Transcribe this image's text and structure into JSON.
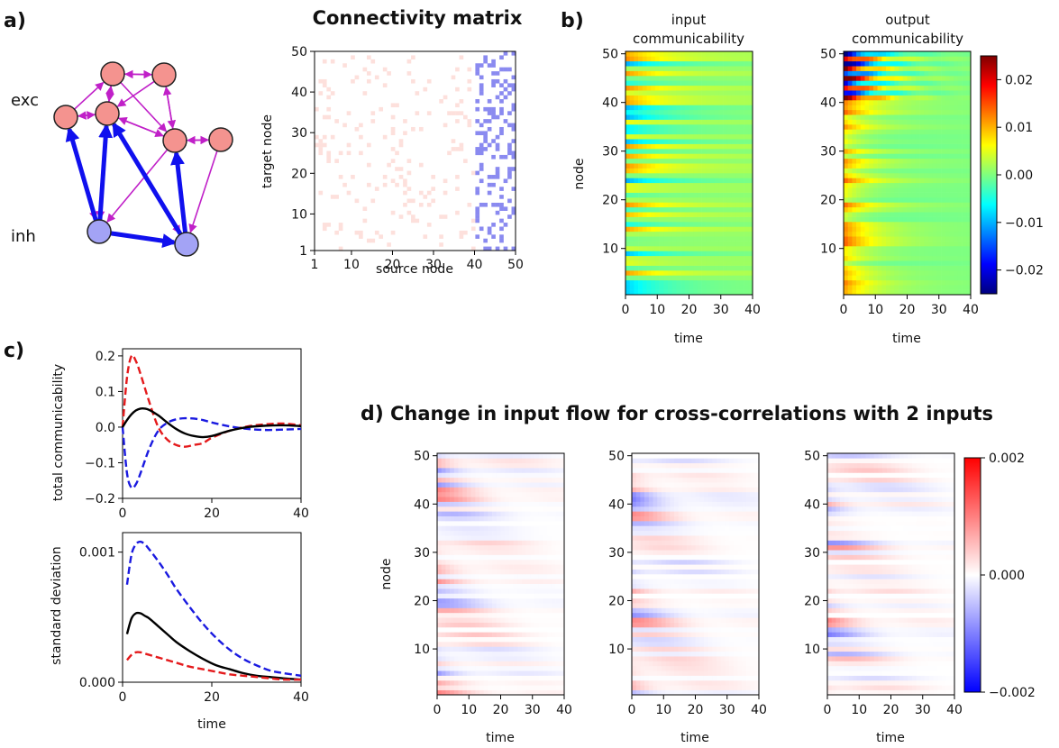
{
  "panel_labels": {
    "a": "a)",
    "b": "b)",
    "c": "c)",
    "d": "d)"
  },
  "network": {
    "labels": {
      "exc": "exc",
      "inh": "inh"
    },
    "colors": {
      "exc_fill": "#f4938f",
      "inh_fill": "#a3a3f5",
      "exc_edge": "#c020c8",
      "inh_edge": "#1010ee"
    }
  },
  "connectivity": {
    "title": "Connectivity matrix",
    "xlabel": "source node",
    "ylabel": "target node",
    "xticks": [
      "1",
      "10",
      "20",
      "30",
      "40",
      "50"
    ],
    "yticks": [
      "1",
      "10",
      "20",
      "30",
      "40",
      "50"
    ],
    "colors": {
      "exc": "#fde0dc",
      "inh": "#8a8af0"
    }
  },
  "comm": {
    "input_title": [
      "input",
      "communicability"
    ],
    "output_title": [
      "output",
      "communicability"
    ],
    "ylabel": "node",
    "xlabel": "time",
    "xticks": [
      "0",
      "10",
      "20",
      "30",
      "40"
    ],
    "yticks": [
      "10",
      "20",
      "30",
      "40",
      "50"
    ],
    "colorbar_ticks": [
      "0.02",
      "0.01",
      "0.00",
      "−0.01",
      "−0.02"
    ]
  },
  "total": {
    "ylabel": "total communicability",
    "yticks": [
      "0.2",
      "0.1",
      "0.0",
      "−0.1",
      "−0.2"
    ],
    "xticks": [
      "0",
      "20",
      "40"
    ]
  },
  "std": {
    "ylabel": "standard deviation",
    "xlabel": "time",
    "yticks": [
      "0.001",
      "0.000"
    ],
    "xticks": [
      "0",
      "20",
      "40"
    ]
  },
  "flow": {
    "title": "Change in input flow for cross-correlations with 2 inputs",
    "ylabel": "node",
    "xlabel": "time",
    "xticks": [
      "0",
      "10",
      "20",
      "30",
      "40"
    ],
    "yticks": [
      "10",
      "20",
      "30",
      "40",
      "50"
    ],
    "colorbar_ticks": [
      "0.002",
      "0.000",
      "−0.002"
    ]
  },
  "chart_data": [
    {
      "type": "heatmap",
      "title": "Connectivity matrix",
      "xlabel": "source node",
      "ylabel": "target node",
      "xlim": [
        1,
        50
      ],
      "ylim": [
        1,
        50
      ],
      "note_values": "excitatory sources 1-40 sparse positive, inhibitory sources 41-50 dense negative"
    },
    {
      "type": "heatmap",
      "title": "input communicability",
      "xlabel": "time",
      "ylabel": "node",
      "xlim": [
        0,
        40
      ],
      "ylim": [
        1,
        50
      ],
      "clim": [
        -0.025,
        0.025
      ]
    },
    {
      "type": "heatmap",
      "title": "output communicability",
      "xlabel": "time",
      "ylabel": "node",
      "xlim": [
        0,
        40
      ],
      "ylim": [
        1,
        50
      ],
      "clim": [
        -0.025,
        0.025
      ]
    },
    {
      "type": "line",
      "ylabel": "total communicability",
      "xlim": [
        0,
        40
      ],
      "ylim": [
        -0.2,
        0.22
      ],
      "series": [
        {
          "color": "#e41a1c",
          "style": "dashed",
          "x": [
            0,
            1,
            2,
            3,
            4,
            6,
            8,
            10,
            12,
            14,
            16,
            18,
            20,
            24,
            28,
            32,
            36,
            40
          ],
          "y": [
            0.0,
            0.14,
            0.2,
            0.185,
            0.15,
            0.07,
            0.0,
            -0.035,
            -0.05,
            -0.055,
            -0.05,
            -0.045,
            -0.03,
            -0.01,
            0.002,
            0.008,
            0.01,
            0.005
          ]
        },
        {
          "color": "#1a1ae0",
          "style": "dashed",
          "x": [
            0,
            1,
            2,
            3,
            4,
            6,
            8,
            10,
            12,
            14,
            16,
            18,
            20,
            24,
            28,
            32,
            36,
            40
          ],
          "y": [
            0.0,
            -0.13,
            -0.17,
            -0.16,
            -0.13,
            -0.06,
            -0.01,
            0.012,
            0.022,
            0.025,
            0.024,
            0.02,
            0.013,
            0.002,
            -0.005,
            -0.008,
            -0.007,
            -0.005
          ]
        },
        {
          "color": "#000000",
          "style": "solid",
          "x": [
            0,
            1,
            2,
            3,
            4,
            5,
            6,
            8,
            10,
            12,
            14,
            16,
            18,
            20,
            24,
            28,
            32,
            36,
            40
          ],
          "y": [
            0.0,
            0.02,
            0.036,
            0.047,
            0.052,
            0.052,
            0.048,
            0.033,
            0.013,
            -0.005,
            -0.018,
            -0.025,
            -0.028,
            -0.025,
            -0.01,
            0.0,
            0.004,
            0.005,
            0.003
          ]
        }
      ]
    },
    {
      "type": "line",
      "ylabel": "standard deviation",
      "xlabel": "time",
      "xlim": [
        0,
        40
      ],
      "ylim": [
        0,
        0.00115
      ],
      "series": [
        {
          "color": "#1a1ae0",
          "style": "dashed",
          "x": [
            1,
            2,
            3,
            4,
            5,
            6,
            8,
            10,
            12,
            15,
            18,
            21,
            24,
            27,
            30,
            33,
            36,
            40
          ],
          "y": [
            0.00075,
            0.00098,
            0.00106,
            0.00108,
            0.00106,
            0.00102,
            0.00093,
            0.00083,
            0.00072,
            0.00058,
            0.00045,
            0.00034,
            0.00025,
            0.00018,
            0.00013,
            9e-05,
            7e-05,
            5e-05
          ]
        },
        {
          "color": "#000000",
          "style": "solid",
          "x": [
            1,
            2,
            3,
            4,
            5,
            6,
            8,
            10,
            12,
            15,
            18,
            21,
            24,
            27,
            30,
            33,
            36,
            40
          ],
          "y": [
            0.00037,
            0.00049,
            0.00053,
            0.00053,
            0.00051,
            0.00049,
            0.00043,
            0.00037,
            0.00031,
            0.00024,
            0.00018,
            0.00013,
            0.0001,
            7e-05,
            5e-05,
            4e-05,
            3e-05,
            2e-05
          ]
        },
        {
          "color": "#e41a1c",
          "style": "dashed",
          "x": [
            1,
            2,
            3,
            4,
            5,
            6,
            8,
            10,
            12,
            15,
            18,
            21,
            24,
            27,
            30,
            33,
            36,
            40
          ],
          "y": [
            0.00017,
            0.00021,
            0.00023,
            0.00023,
            0.00022,
            0.00021,
            0.00019,
            0.00017,
            0.00015,
            0.00012,
            0.0001,
            8e-05,
            6e-05,
            5e-05,
            4e-05,
            3e-05,
            2e-05,
            2e-05
          ]
        }
      ]
    },
    {
      "type": "heatmap",
      "title": "Change in input flow for cross-correlations with 2 inputs",
      "xlabel": "time",
      "ylabel": "node",
      "xlim": [
        0,
        40
      ],
      "ylim": [
        1,
        50
      ],
      "clim": [
        -0.002,
        0.002
      ],
      "panels": 3
    }
  ]
}
